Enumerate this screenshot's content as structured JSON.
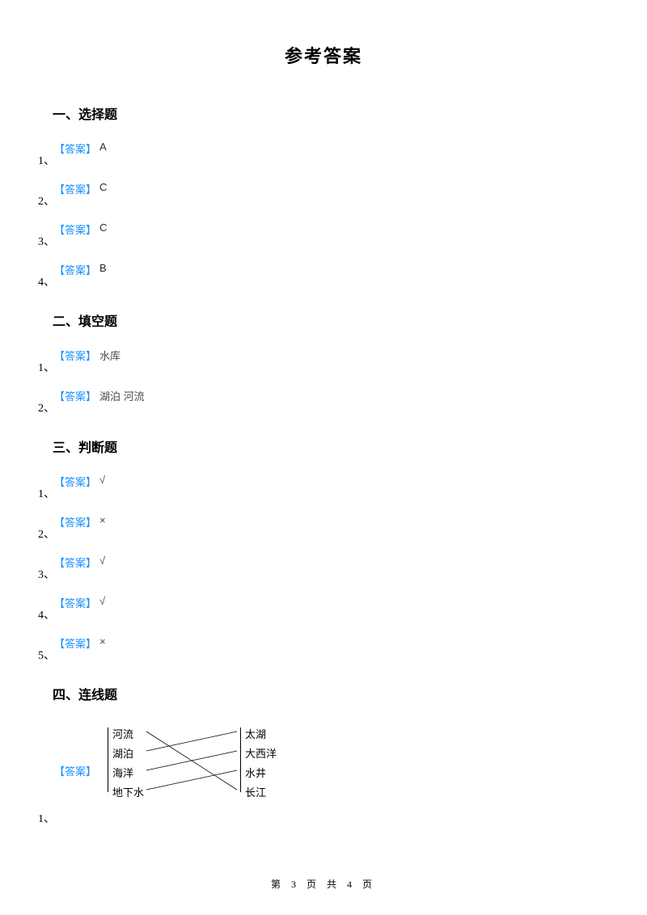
{
  "title": "参考答案",
  "answer_label": "【答案】",
  "sections": {
    "s1": {
      "heading": "一、选择题",
      "items": [
        {
          "num": "1、",
          "val": "A"
        },
        {
          "num": "2、",
          "val": "C"
        },
        {
          "num": "3、",
          "val": "C"
        },
        {
          "num": "4、",
          "val": "B"
        }
      ]
    },
    "s2": {
      "heading": "二、填空题",
      "items": [
        {
          "num": "1、",
          "val": "水库"
        },
        {
          "num": "2、",
          "val": "湖泊 河流"
        }
      ]
    },
    "s3": {
      "heading": "三、判断题",
      "items": [
        {
          "num": "1、",
          "val": "√"
        },
        {
          "num": "2、",
          "val": "×"
        },
        {
          "num": "3、",
          "val": "√"
        },
        {
          "num": "4、",
          "val": "√"
        },
        {
          "num": "5、",
          "val": "×"
        }
      ]
    },
    "s4": {
      "heading": "四、连线题",
      "num": "1、",
      "left": [
        "河流",
        "湖泊",
        "海洋",
        "地下水"
      ],
      "right": [
        "太湖",
        "大西洋",
        "水井",
        "长江"
      ],
      "edges": [
        {
          "from": 0,
          "to": 3
        },
        {
          "from": 1,
          "to": 0
        },
        {
          "from": 2,
          "to": 1
        },
        {
          "from": 3,
          "to": 2
        }
      ]
    }
  },
  "footer": {
    "prefix": "第 ",
    "page": "3",
    "mid": " 页 共 ",
    "total": "4",
    "suffix": " 页"
  },
  "colors": {
    "answer_label": "#1890ff",
    "text": "#000000",
    "gray_text": "#4a4a4a",
    "background": "#ffffff"
  }
}
